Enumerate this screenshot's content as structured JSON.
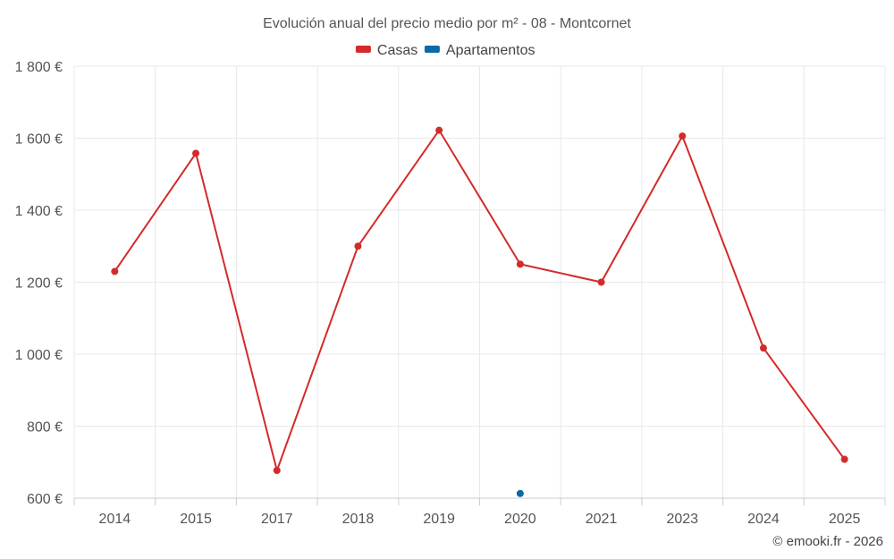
{
  "chart_data": {
    "type": "line",
    "title": "Evolución anual del precio medio por m² - 08 - Montcornet",
    "categories": [
      "2014",
      "2015",
      "2017",
      "2018",
      "2019",
      "2020",
      "2021",
      "2023",
      "2024",
      "2025"
    ],
    "series": [
      {
        "name": "Casas",
        "color": "#d42a2a",
        "values": [
          1230,
          1558,
          677,
          1300,
          1622,
          1250,
          1200,
          1606,
          1017,
          708
        ]
      },
      {
        "name": "Apartamentos",
        "color": "#0b6aa6",
        "values": [
          null,
          null,
          null,
          null,
          null,
          613,
          null,
          null,
          null,
          null
        ]
      }
    ],
    "ylim": [
      600,
      1800
    ],
    "yticks": [
      600,
      800,
      1000,
      1200,
      1400,
      1600,
      1800
    ],
    "ytick_labels": [
      "600 €",
      "800 €",
      "1 000 €",
      "1 200 €",
      "1 400 €",
      "1 600 €",
      "1 800 €"
    ],
    "xlabel": "",
    "ylabel": "",
    "grid": true,
    "legend_position": "top-center"
  },
  "credit": "© emooki.fr - 2026"
}
